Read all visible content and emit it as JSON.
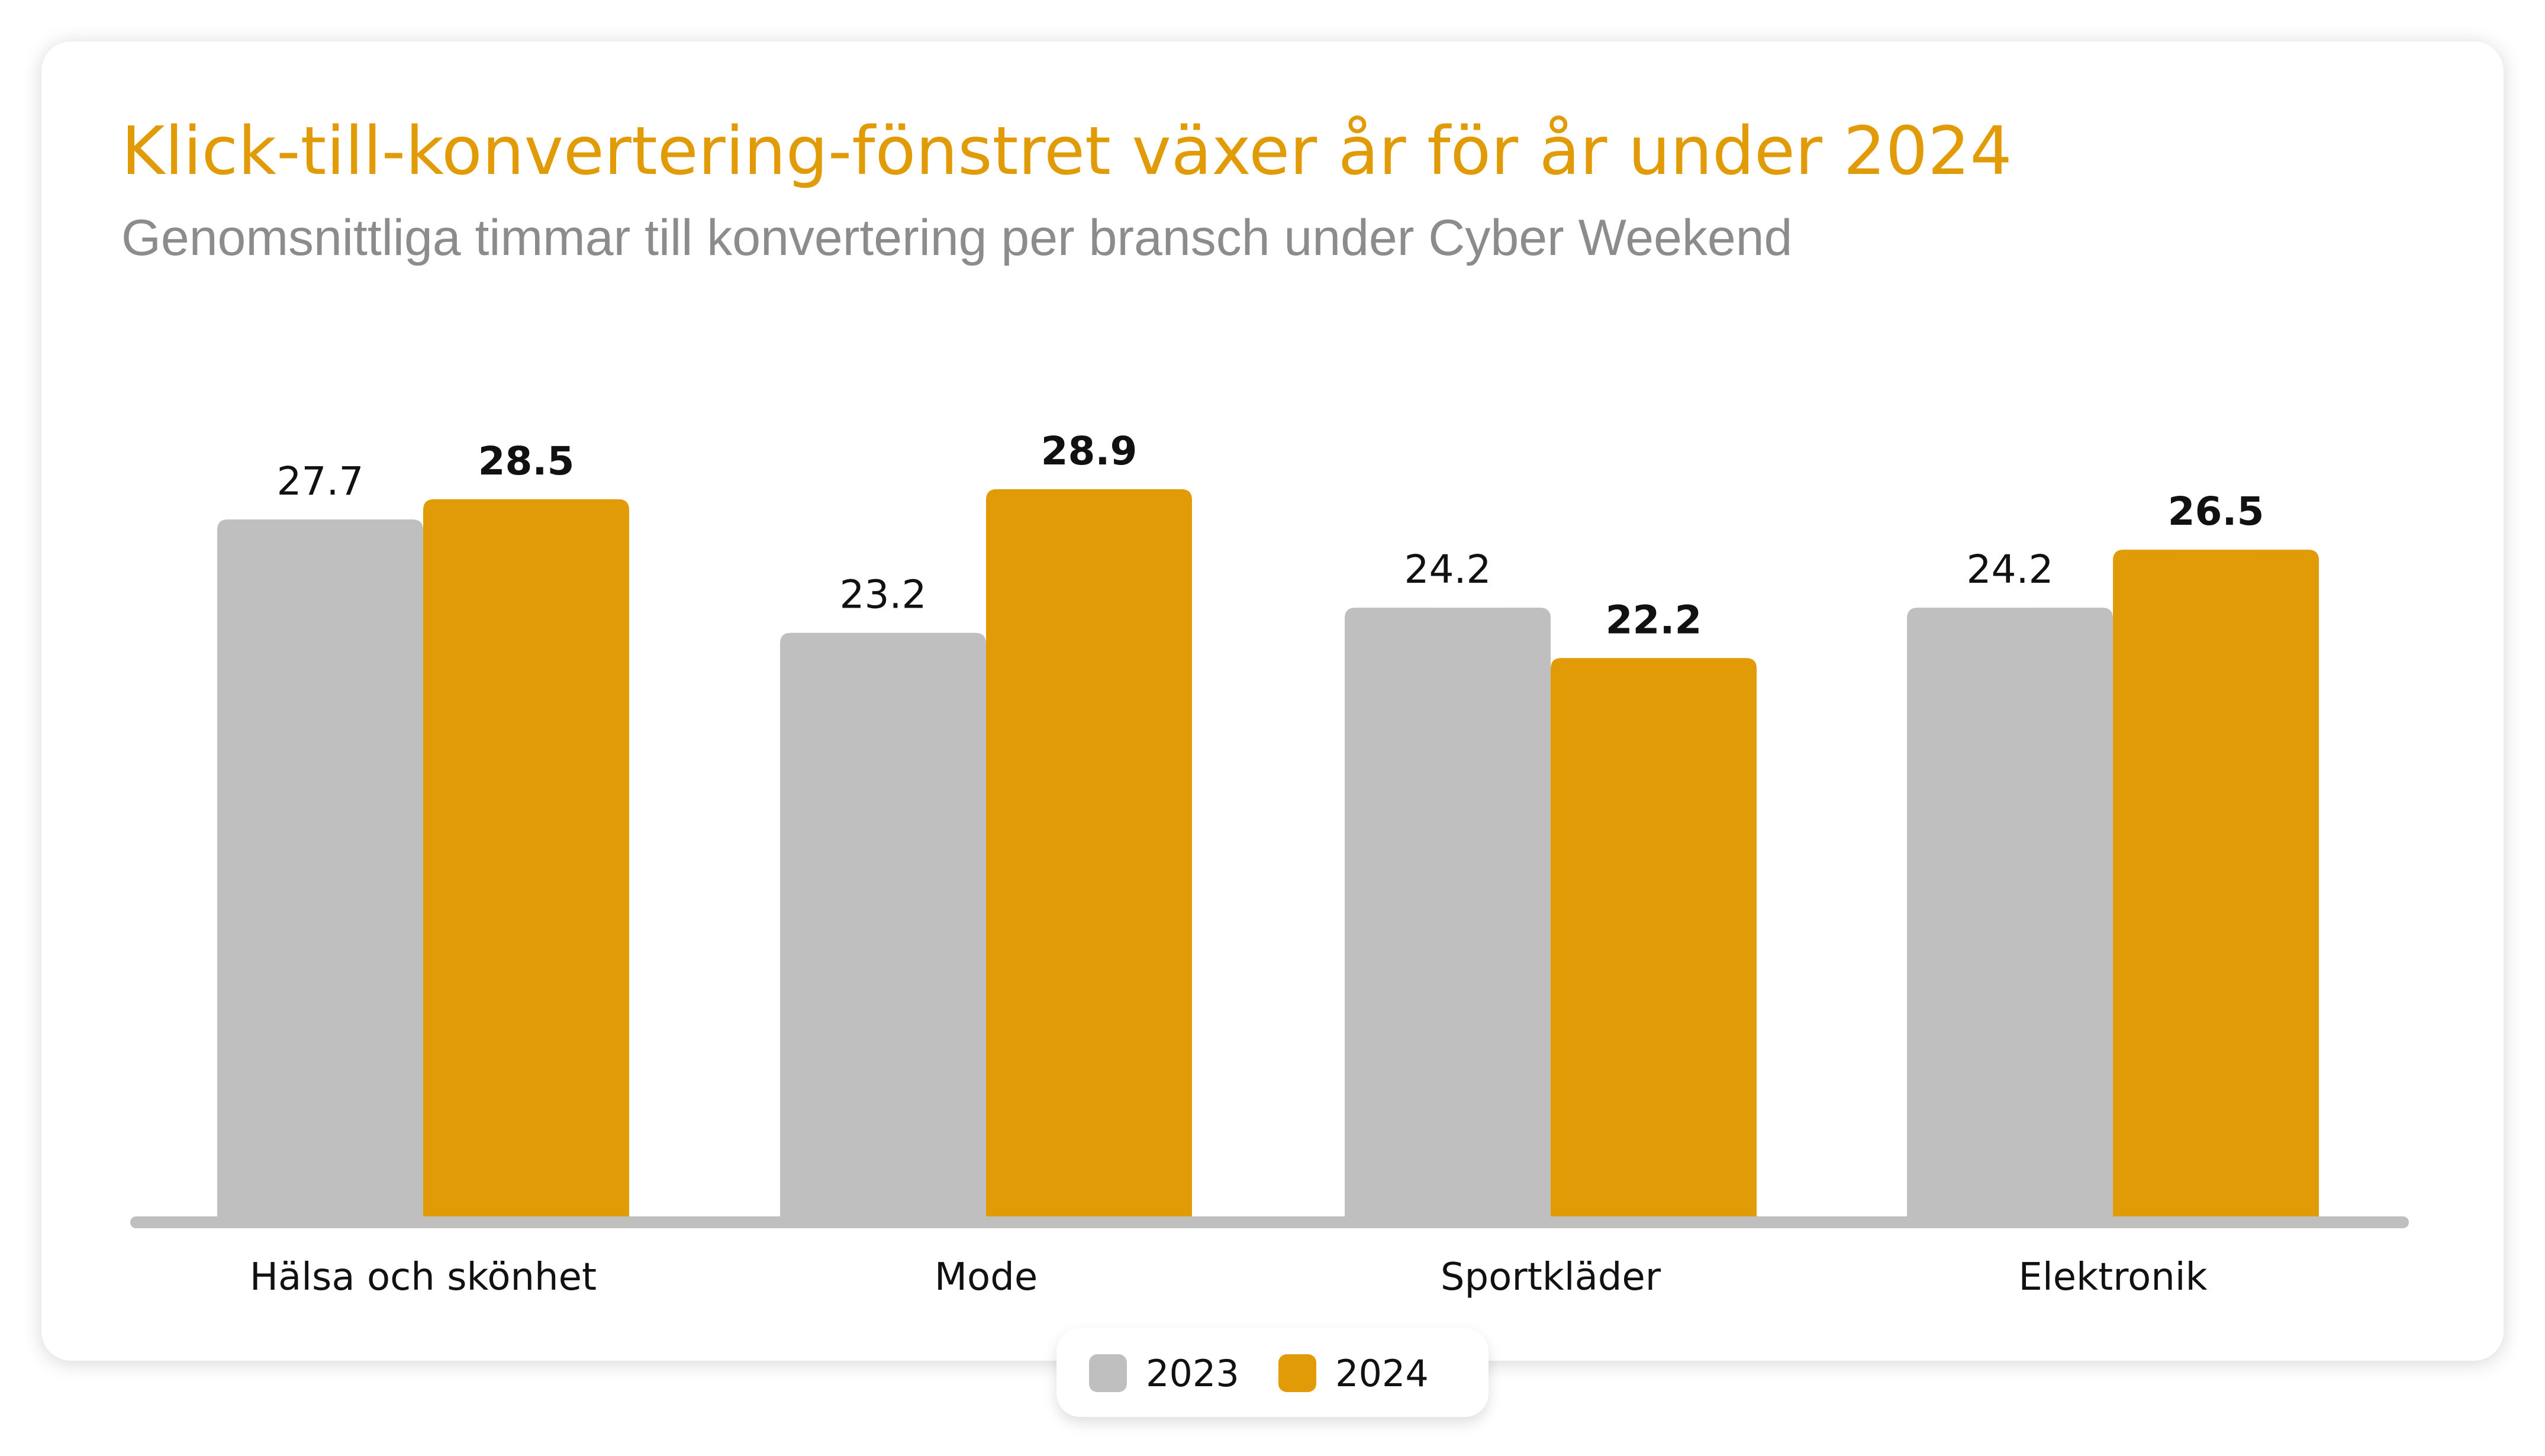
{
  "chart_data": {
    "type": "bar",
    "title": "Klick-till-konvertering-fönstret växer år för år under 2024",
    "subtitle": "Genomsnittliga timmar till konvertering per bransch under Cyber Weekend",
    "categories": [
      "Hälsa och skönhet",
      "Mode",
      "Sportkläder",
      "Elektronik"
    ],
    "series": [
      {
        "name": "2023",
        "values": [
          27.7,
          23.2,
          24.2,
          24.2
        ],
        "color": "#BFBFBF"
      },
      {
        "name": "2024",
        "values": [
          28.5,
          28.9,
          22.2,
          26.5
        ],
        "color": "#E09B06"
      }
    ],
    "xlabel": "",
    "ylabel": "",
    "ylim": [
      0,
      30
    ],
    "grid": false,
    "legend": "bottom-center",
    "data_labels": true
  }
}
